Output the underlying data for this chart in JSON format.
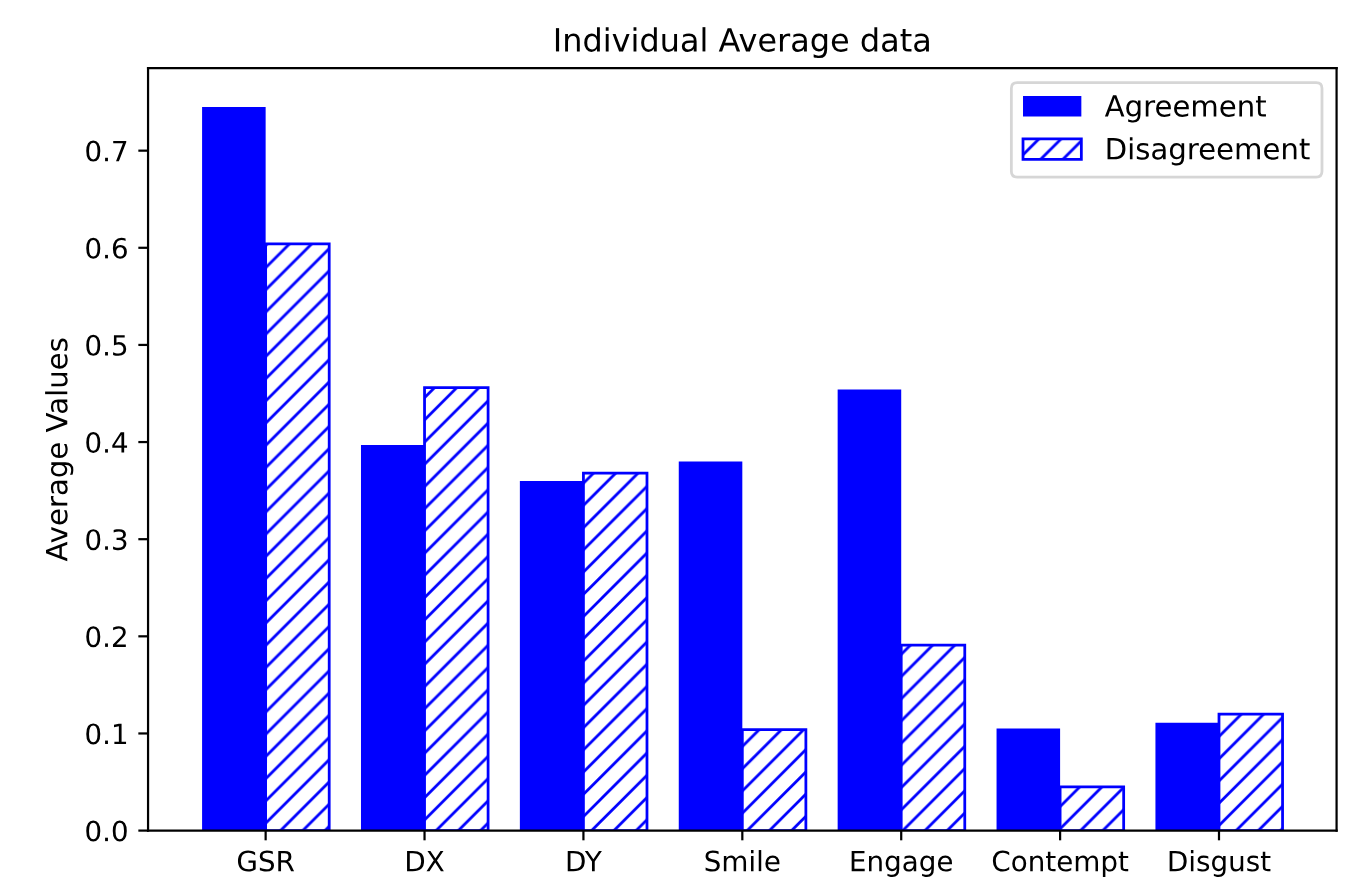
{
  "chart_data": {
    "type": "bar",
    "title": "Individual Average data",
    "ylabel": "Average Values",
    "categories": [
      "GSR",
      "DX",
      "DY",
      "Smile",
      "Engage",
      "Contempt",
      "Disgust"
    ],
    "series": [
      {
        "name": "Agreement",
        "color": "#0000ff",
        "values": [
          0.745,
          0.397,
          0.36,
          0.38,
          0.454,
          0.105,
          0.111
        ]
      },
      {
        "name": "Disagreement",
        "color": "#0000ff",
        "values": [
          0.604,
          0.456,
          0.368,
          0.104,
          0.191,
          0.045,
          0.12
        ]
      }
    ],
    "ylim": [
      0,
      0.785
    ],
    "yticks": [
      {
        "value": 0,
        "label": "0.0"
      },
      0.1,
      0.2,
      0.3,
      0.4,
      0.5,
      0.6,
      0.7
    ],
    "grid": false,
    "legend": "top right"
  }
}
